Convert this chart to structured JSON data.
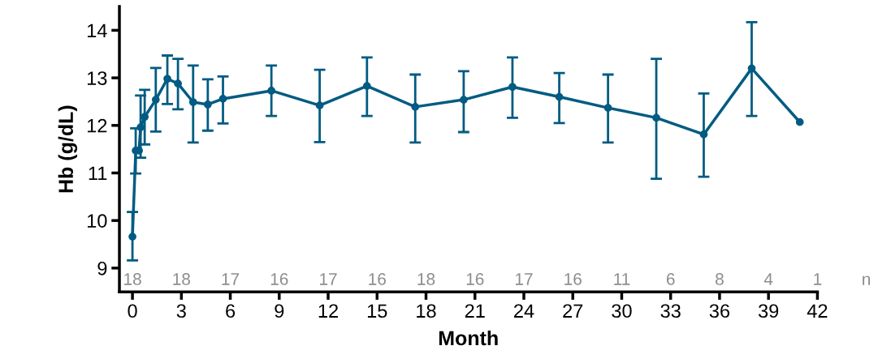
{
  "chart_data": {
    "type": "line",
    "xlabel": "Month",
    "ylabel": "Hb (g/dL)",
    "x": [
      0,
      0.2,
      0.4,
      0.5,
      0.75,
      1.43,
      2.14,
      2.79,
      3.72,
      4.62,
      5.55,
      8.52,
      11.48,
      14.38,
      17.34,
      20.31,
      23.3,
      26.17,
      29.16,
      32.12,
      35.03,
      37.97,
      40.92
    ],
    "series": [
      {
        "color": "#005b82",
        "values": [
          9.66,
          11.47,
          11.47,
          11.96,
          12.18,
          12.54,
          12.98,
          12.88,
          12.49,
          12.44,
          12.56,
          12.73,
          12.42,
          12.83,
          12.39,
          12.54,
          12.81,
          12.6,
          12.37,
          12.16,
          11.81,
          13.2,
          12.07
        ],
        "errors": [
          [
            9.16,
            10.18
          ],
          [
            10.99,
            11.94
          ],
          null,
          [
            11.32,
            12.63
          ],
          [
            11.6,
            12.75
          ],
          [
            11.87,
            13.21
          ],
          [
            12.45,
            13.47
          ],
          [
            12.34,
            13.4
          ],
          [
            11.64,
            13.26
          ],
          [
            11.89,
            12.97
          ],
          [
            12.04,
            13.03
          ],
          [
            12.2,
            13.26
          ],
          [
            11.65,
            13.17
          ],
          [
            12.2,
            13.43
          ],
          [
            11.64,
            13.07
          ],
          [
            11.86,
            13.14
          ],
          [
            12.16,
            13.43
          ],
          [
            12.05,
            13.1
          ],
          [
            11.64,
            13.07
          ],
          [
            10.88,
            13.4
          ],
          [
            10.92,
            12.67
          ],
          [
            12.2,
            14.17
          ],
          null
        ]
      }
    ],
    "xlim": [
      -0.8,
      42
    ],
    "xticks": [
      0,
      3,
      6,
      9,
      12,
      15,
      18,
      21,
      24,
      27,
      30,
      33,
      36,
      39,
      42
    ],
    "ylim": [
      8.5,
      14.5
    ],
    "yticks": [
      9,
      10,
      11,
      12,
      13,
      14
    ],
    "annotations": [
      "18",
      "18",
      "17",
      "16",
      "17",
      "16",
      "18",
      "16",
      "17",
      "16",
      "11",
      "6",
      "8",
      "4",
      "1",
      "n"
    ],
    "marker": "circle",
    "line_style": "solid",
    "grid": false,
    "legend": false
  }
}
